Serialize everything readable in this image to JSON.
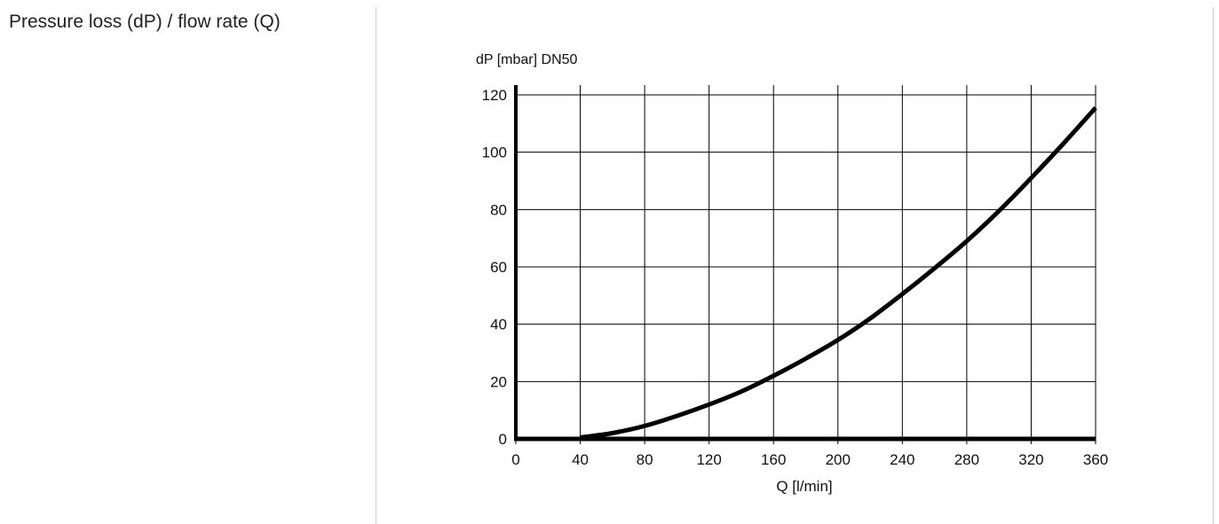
{
  "page": {
    "section_title": "Pressure loss (dP) / flow rate (Q)"
  },
  "chart_data": {
    "type": "line",
    "ylabel": "dP [mbar] DN50",
    "xlabel": "Q [l/min]",
    "xlim": [
      0,
      360
    ],
    "ylim": [
      0,
      120
    ],
    "x_ticks": [
      0,
      40,
      80,
      120,
      160,
      200,
      240,
      280,
      320,
      360
    ],
    "y_ticks": [
      0,
      20,
      40,
      60,
      80,
      100,
      120
    ],
    "grid": true,
    "series": [
      {
        "x": [
          40,
          50,
          60,
          80,
          100,
          120,
          140,
          160,
          180,
          200,
          220,
          240,
          260,
          280,
          300,
          320,
          340,
          360
        ],
        "y": [
          0.5,
          1.2,
          2.0,
          4.5,
          8.0,
          12.0,
          16.5,
          22.0,
          28.0,
          34.5,
          42.0,
          50.5,
          59.5,
          69.0,
          79.5,
          91.0,
          103.0,
          115.5
        ]
      }
    ],
    "line_color": "#000000"
  }
}
